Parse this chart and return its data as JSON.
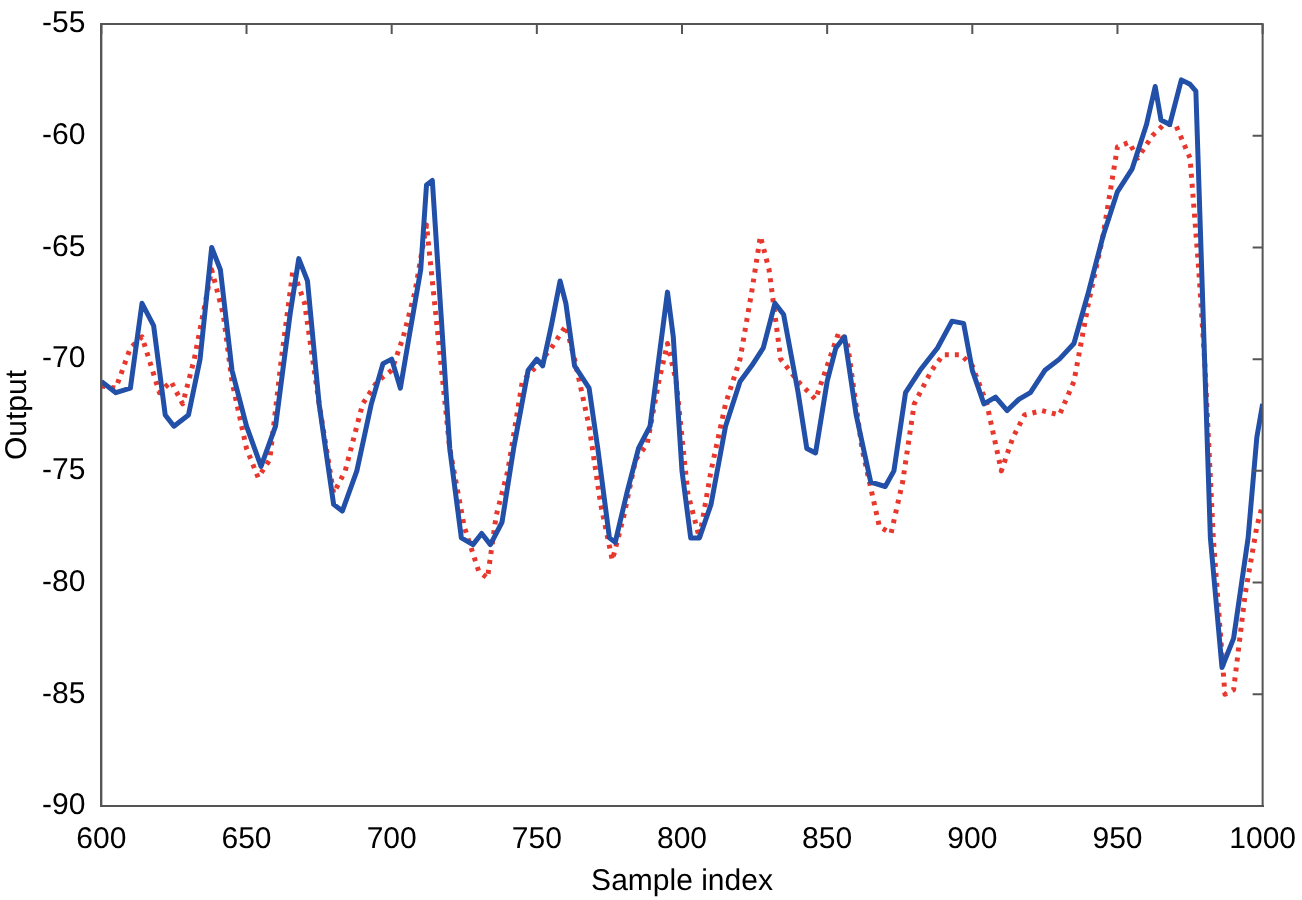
{
  "chart_data": {
    "type": "line",
    "xlabel": "Sample index",
    "ylabel": "Output",
    "xlim": [
      600,
      1000
    ],
    "ylim": [
      -90,
      -55
    ],
    "xticks": [
      600,
      650,
      700,
      750,
      800,
      850,
      900,
      950,
      1000
    ],
    "yticks": [
      -90,
      -85,
      -80,
      -75,
      -70,
      -65,
      -60,
      -55
    ],
    "grid": false,
    "marker": "none",
    "series": [
      {
        "color": "#2250a8",
        "line_style": "solid",
        "x": [
          600,
          605,
          610,
          614,
          618,
          622,
          625,
          630,
          634,
          638,
          641,
          645,
          650,
          655,
          660,
          665,
          668,
          671,
          675,
          680,
          683,
          688,
          693,
          697,
          700,
          703,
          706,
          710,
          712,
          714,
          717,
          720,
          724,
          728,
          731,
          734,
          738,
          742,
          747,
          750,
          752,
          755,
          758,
          760,
          763,
          768,
          771,
          775,
          777,
          781,
          785,
          789,
          792,
          795,
          797,
          800,
          803,
          806,
          810,
          815,
          820,
          824,
          828,
          832,
          835,
          840,
          843,
          846,
          850,
          853,
          856,
          860,
          865,
          870,
          873,
          877,
          882,
          888,
          893,
          897,
          900,
          904,
          908,
          912,
          916,
          920,
          925,
          930,
          935,
          940,
          945,
          950,
          955,
          960,
          963,
          965,
          968,
          972,
          975,
          977,
          980,
          982,
          986,
          990,
          995,
          998,
          1000
        ],
        "values": [
          -71,
          -71.5,
          -71.3,
          -67.5,
          -68.5,
          -72.5,
          -73,
          -72.5,
          -70,
          -65,
          -66,
          -70.5,
          -73,
          -74.8,
          -73,
          -68,
          -65.5,
          -66.5,
          -72,
          -76.5,
          -76.8,
          -75,
          -72,
          -70.2,
          -70,
          -71.3,
          -69,
          -66,
          -62.2,
          -62,
          -68,
          -74,
          -78,
          -78.3,
          -77.8,
          -78.3,
          -77.3,
          -74,
          -70.5,
          -70,
          -70.3,
          -68.5,
          -66.5,
          -67.5,
          -70.3,
          -71.3,
          -74,
          -78,
          -78.2,
          -76,
          -74,
          -73,
          -70,
          -67,
          -69,
          -75,
          -78,
          -78,
          -76.5,
          -73,
          -71,
          -70.3,
          -69.5,
          -67.5,
          -68,
          -71.5,
          -74,
          -74.2,
          -71,
          -69.5,
          -69,
          -72.5,
          -75.5,
          -75.7,
          -75,
          -71.5,
          -70.5,
          -69.5,
          -68.3,
          -68.4,
          -70.5,
          -72,
          -71.7,
          -72.3,
          -71.8,
          -71.5,
          -70.5,
          -70,
          -69.3,
          -67,
          -64.5,
          -62.5,
          -61.5,
          -59.5,
          -57.8,
          -59.3,
          -59.5,
          -57.5,
          -57.7,
          -58,
          -70,
          -78,
          -83.8,
          -82.5,
          -78,
          -73.5,
          -72
        ]
      },
      {
        "color": "#e8382e",
        "line_style": "dotted",
        "x": [
          600,
          605,
          610,
          614,
          620,
          624,
          628,
          632,
          638,
          642,
          645,
          650,
          654,
          658,
          662,
          666,
          670,
          675,
          680,
          684,
          690,
          695,
          700,
          704,
          708,
          712,
          716,
          720,
          725,
          730,
          733,
          736,
          740,
          745,
          750,
          755,
          760,
          763,
          768,
          772,
          776,
          780,
          784,
          788,
          792,
          795,
          798,
          802,
          806,
          810,
          815,
          820,
          824,
          827,
          830,
          834,
          840,
          846,
          850,
          854,
          857,
          862,
          868,
          872,
          876,
          880,
          886,
          890,
          896,
          900,
          905,
          910,
          914,
          918,
          924,
          930,
          935,
          940,
          945,
          950,
          954,
          957,
          962,
          966,
          970,
          975,
          978,
          980,
          983,
          987,
          990,
          994,
          998,
          1000
        ],
        "values": [
          -71.2,
          -71.3,
          -69.5,
          -69,
          -71.5,
          -71,
          -72,
          -70,
          -66,
          -68,
          -71,
          -74,
          -75.3,
          -74.5,
          -70,
          -66,
          -67.5,
          -72,
          -76,
          -75,
          -72,
          -71,
          -70.5,
          -69,
          -67,
          -64,
          -69,
          -74,
          -77.5,
          -79.5,
          -79.8,
          -77,
          -75,
          -71,
          -70.3,
          -69.5,
          -68.5,
          -70,
          -73,
          -76.5,
          -79,
          -77,
          -74.5,
          -73.8,
          -71,
          -69.3,
          -71,
          -76,
          -78,
          -75,
          -72,
          -70,
          -67,
          -64.5,
          -66,
          -70,
          -71,
          -71.8,
          -70.3,
          -68.8,
          -69.3,
          -74,
          -77.5,
          -77.8,
          -75.5,
          -72,
          -70.5,
          -69.8,
          -69.8,
          -70.3,
          -72,
          -75,
          -73.5,
          -72.5,
          -72.3,
          -72.5,
          -71,
          -67.5,
          -64.5,
          -60.5,
          -60.3,
          -61,
          -60,
          -59.5,
          -59.5,
          -61,
          -66,
          -70,
          -78,
          -85,
          -84.8,
          -80.5,
          -77.5,
          -76.5
        ]
      }
    ]
  }
}
